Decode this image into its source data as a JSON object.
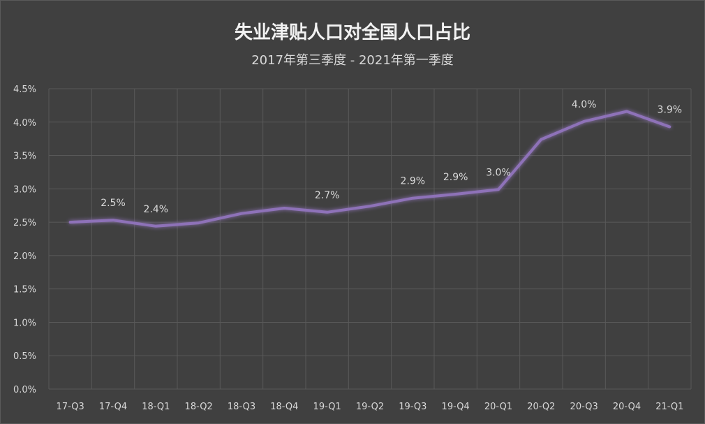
{
  "chart_data": {
    "type": "line",
    "title": "失业津贴人口对全国人口占比",
    "subtitle": "2017年第三季度 - 2021年第一季度",
    "categories": [
      "17-Q3",
      "17-Q4",
      "18-Q1",
      "18-Q2",
      "18-Q3",
      "18-Q4",
      "19-Q1",
      "19-Q2",
      "19-Q3",
      "19-Q4",
      "20-Q1",
      "20-Q2",
      "20-Q3",
      "20-Q4",
      "21-Q1"
    ],
    "series": [
      {
        "values": [
          2.5,
          2.53,
          2.44,
          2.49,
          2.63,
          2.71,
          2.65,
          2.74,
          2.86,
          2.92,
          2.99,
          3.74,
          4.01,
          4.16,
          3.93
        ]
      }
    ],
    "data_labels": [
      {
        "index": 1,
        "text": "2.5%"
      },
      {
        "index": 2,
        "text": "2.4%"
      },
      {
        "index": 6,
        "text": "2.7%"
      },
      {
        "index": 8,
        "text": "2.9%"
      },
      {
        "index": 9,
        "text": "2.9%"
      },
      {
        "index": 10,
        "text": "3.0%"
      },
      {
        "index": 12,
        "text": "4.0%"
      },
      {
        "index": 14,
        "text": "3.9%"
      }
    ],
    "ylim": [
      0,
      4.5
    ],
    "yticks": [
      "0.0%",
      "0.5%",
      "1.0%",
      "1.5%",
      "2.0%",
      "2.5%",
      "3.0%",
      "3.5%",
      "4.0%",
      "4.5%"
    ],
    "grid": true,
    "line_color": "#8e72b8"
  }
}
